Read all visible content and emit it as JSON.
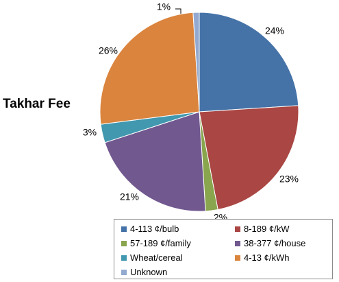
{
  "chart_data": {
    "type": "pie",
    "title": "Takhar Fee",
    "slices": [
      {
        "label": "4-113  ¢/bulb",
        "value": 24,
        "value_label": "24%",
        "color": "#4573a8"
      },
      {
        "label": "8-189  ¢/kW",
        "value": 23,
        "value_label": "23%",
        "color": "#aa4643"
      },
      {
        "label": "57-189  ¢/family",
        "value": 2,
        "value_label": "2%",
        "color": "#89a54e"
      },
      {
        "label": "38-377  ¢/house",
        "value": 21,
        "value_label": "21%",
        "color": "#71588f"
      },
      {
        "label": "Wheat/cereal",
        "value": 3,
        "value_label": "3%",
        "color": "#4198af"
      },
      {
        "label": "4-13  ¢/kWh",
        "value": 26,
        "value_label": "26%",
        "color": "#db843d"
      },
      {
        "label": "Unknown",
        "value": 1,
        "value_label": "1%",
        "color": "#93a9cf"
      }
    ],
    "legend_placement": "bottom-right"
  }
}
